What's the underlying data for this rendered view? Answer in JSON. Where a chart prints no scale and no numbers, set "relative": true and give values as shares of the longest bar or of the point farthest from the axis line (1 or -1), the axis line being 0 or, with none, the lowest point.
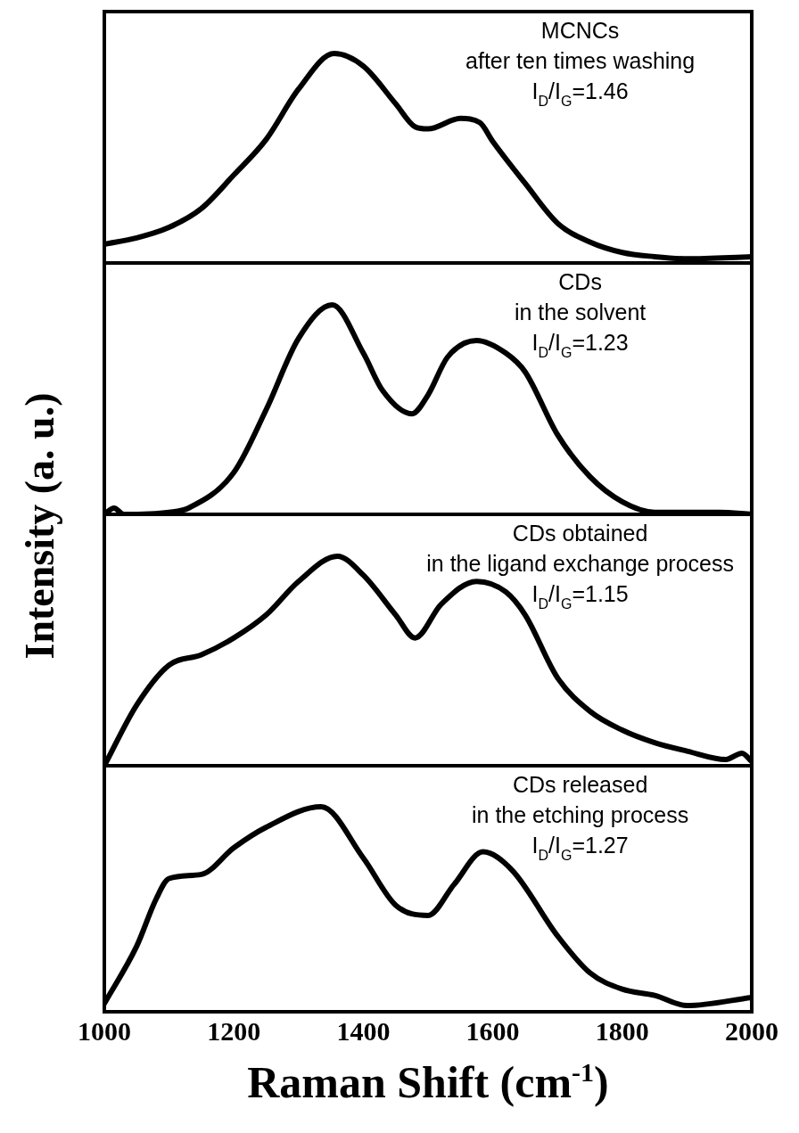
{
  "chart_data": [
    {
      "type": "line",
      "relative": true,
      "xlim": [
        1000,
        2000
      ],
      "tick_labels": false,
      "annotations": [
        "MCNCs",
        "after ten times washing",
        "I$_{D}$/I$_{G}$=1.46"
      ],
      "x": [
        1000,
        1050,
        1100,
        1150,
        1200,
        1250,
        1300,
        1355,
        1400,
        1450,
        1480,
        1500,
        1550,
        1580,
        1600,
        1650,
        1700,
        1750,
        1800,
        1850,
        1900,
        2000
      ],
      "series": [
        {
          "color": "#000000",
          "values": [
            0.09,
            0.12,
            0.17,
            0.26,
            0.42,
            0.59,
            0.83,
            1.0,
            0.94,
            0.76,
            0.65,
            0.64,
            0.69,
            0.67,
            0.58,
            0.38,
            0.19,
            0.1,
            0.05,
            0.03,
            0.02,
            0.03
          ]
        }
      ]
    },
    {
      "type": "line",
      "relative": true,
      "xlim": [
        1000,
        2000
      ],
      "tick_labels": false,
      "annotations": [
        "CDs",
        "in the solvent",
        "I$_{D}$/I$_{G}$=1.23"
      ],
      "x": [
        1000,
        1015,
        1030,
        1100,
        1130,
        1200,
        1250,
        1300,
        1352,
        1400,
        1430,
        1475,
        1500,
        1530,
        1575,
        1620,
        1650,
        1700,
        1750,
        1800,
        1850,
        1950,
        2000
      ],
      "series": [
        {
          "color": "#000000",
          "values": [
            0.0,
            0.03,
            0.0,
            0.01,
            0.03,
            0.2,
            0.5,
            0.84,
            1.0,
            0.77,
            0.59,
            0.48,
            0.57,
            0.75,
            0.83,
            0.77,
            0.68,
            0.38,
            0.18,
            0.06,
            0.01,
            0.01,
            0.0
          ]
        }
      ]
    },
    {
      "type": "line",
      "relative": true,
      "xlim": [
        1000,
        2000
      ],
      "tick_labels": false,
      "annotations": [
        "CDs obtained",
        "in the ligand exchange process",
        "I$_{D}$/I$_{G}$=1.15"
      ],
      "x": [
        1000,
        1050,
        1100,
        1150,
        1200,
        1250,
        1300,
        1360,
        1400,
        1450,
        1480,
        1520,
        1575,
        1620,
        1650,
        1700,
        1750,
        1800,
        1850,
        1900,
        1960,
        1985,
        2000
      ],
      "series": [
        {
          "color": "#000000",
          "values": [
            0.0,
            0.29,
            0.48,
            0.53,
            0.61,
            0.72,
            0.88,
            1.0,
            0.91,
            0.72,
            0.61,
            0.77,
            0.88,
            0.83,
            0.72,
            0.42,
            0.26,
            0.17,
            0.11,
            0.07,
            0.03,
            0.06,
            0.02
          ]
        }
      ]
    },
    {
      "type": "line",
      "relative": true,
      "xlim": [
        1000,
        2000
      ],
      "xticks": [
        1000,
        1200,
        1400,
        1600,
        1800,
        2000
      ],
      "tick_labels": "x",
      "xlabel": "Raman Shift (cm$^{-1}$)",
      "ylabel": "Intensity (a. u.)",
      "annotations": [
        "CDs released",
        "in the etching process",
        "I$_{D}$/I$_{G}$=1.27"
      ],
      "x": [
        1000,
        1050,
        1080,
        1100,
        1150,
        1200,
        1250,
        1335,
        1400,
        1450,
        1500,
        1540,
        1585,
        1630,
        1700,
        1750,
        1800,
        1850,
        1900,
        2000
      ],
      "series": [
        {
          "color": "#000000",
          "values": [
            0.04,
            0.32,
            0.55,
            0.65,
            0.67,
            0.8,
            0.9,
            1.0,
            0.75,
            0.52,
            0.47,
            0.62,
            0.78,
            0.69,
            0.37,
            0.19,
            0.11,
            0.08,
            0.03,
            0.07
          ]
        }
      ]
    }
  ]
}
